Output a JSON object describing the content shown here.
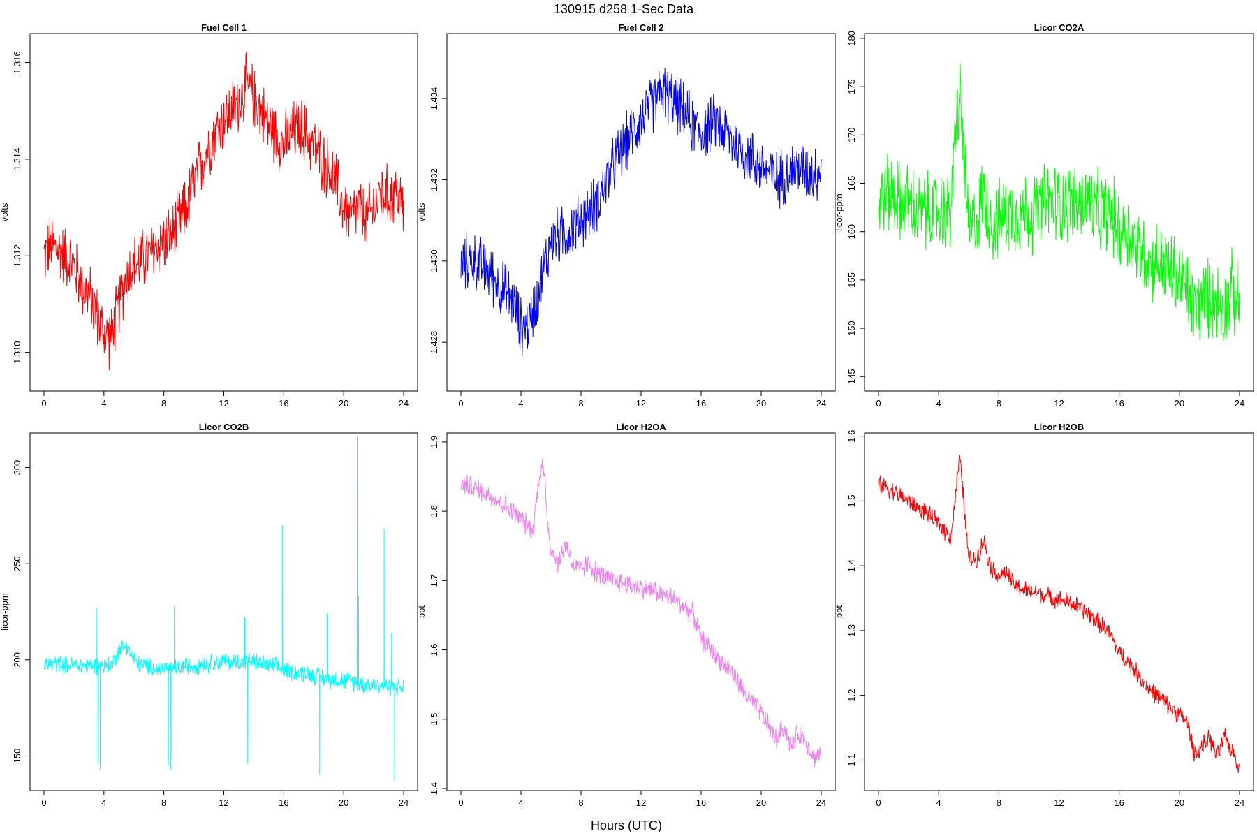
{
  "figure": {
    "title": "130915   d258   1-Sec Data",
    "xlabel": "Hours (UTC)"
  },
  "chart_data": [
    {
      "type": "line",
      "title": "Fuel Cell 1",
      "ylabel": "volts",
      "color": "#ff0000",
      "xlim": [
        0,
        24
      ],
      "ylim": [
        1.3092,
        1.3166
      ],
      "xticks": [
        0,
        4,
        8,
        12,
        16,
        20,
        24
      ],
      "yticks": [
        1.31,
        1.312,
        1.314,
        1.316
      ],
      "ytick_labels": [
        "1.310",
        "1.312",
        "1.314",
        "1.316"
      ],
      "noise": 0.00055,
      "x": [
        0,
        0.5,
        1,
        1.5,
        2,
        2.5,
        3,
        3.5,
        4,
        4.5,
        5,
        5.5,
        6,
        6.5,
        7,
        7.5,
        8,
        8.5,
        9,
        9.5,
        10,
        10.5,
        11,
        11.5,
        12,
        12.5,
        13,
        13.5,
        14,
        14.5,
        15,
        15.5,
        16,
        16.5,
        17,
        17.5,
        18,
        18.5,
        19,
        19.5,
        20,
        20.5,
        21,
        21.5,
        22,
        22.5,
        23,
        23.5,
        24
      ],
      "y": [
        1.312,
        1.3122,
        1.3121,
        1.312,
        1.3118,
        1.3114,
        1.3112,
        1.3108,
        1.3104,
        1.3103,
        1.311,
        1.3116,
        1.3118,
        1.3119,
        1.312,
        1.3122,
        1.3123,
        1.3124,
        1.3127,
        1.313,
        1.3135,
        1.3139,
        1.3143,
        1.3146,
        1.3148,
        1.315,
        1.3152,
        1.3155,
        1.3153,
        1.315,
        1.3147,
        1.3145,
        1.3143,
        1.3145,
        1.3147,
        1.3145,
        1.3143,
        1.314,
        1.3138,
        1.3135,
        1.313,
        1.3128,
        1.313,
        1.3127,
        1.313,
        1.3133,
        1.3132,
        1.3133,
        1.313
      ]
    },
    {
      "type": "line",
      "title": "Fuel Cell 2",
      "ylabel": "volts",
      "color": "#0000ff",
      "xlim": [
        0,
        24
      ],
      "ylim": [
        1.4268,
        1.4356
      ],
      "xticks": [
        0,
        4,
        8,
        12,
        16,
        20,
        24
      ],
      "yticks": [
        1.428,
        1.43,
        1.432,
        1.434
      ],
      "ytick_labels": [
        "1.428",
        "1.430",
        "1.432",
        "1.434"
      ],
      "noise": 0.0006,
      "x": [
        0,
        0.5,
        1,
        1.5,
        2,
        2.5,
        3,
        3.5,
        4,
        4.5,
        5,
        5.5,
        6,
        6.5,
        7,
        7.5,
        8,
        8.5,
        9,
        9.5,
        10,
        10.5,
        11,
        11.5,
        12,
        12.5,
        13,
        13.5,
        14,
        14.5,
        15,
        15.5,
        16,
        16.5,
        17,
        17.5,
        18,
        18.5,
        19,
        19.5,
        20,
        20.5,
        21,
        21.5,
        22,
        22.5,
        23,
        23.5,
        24
      ],
      "y": [
        1.4298,
        1.43,
        1.43,
        1.4298,
        1.4297,
        1.4294,
        1.4292,
        1.429,
        1.4284,
        1.4284,
        1.429,
        1.4298,
        1.4305,
        1.4306,
        1.4307,
        1.4308,
        1.431,
        1.4312,
        1.4314,
        1.4318,
        1.4322,
        1.4326,
        1.4329,
        1.4332,
        1.4335,
        1.4337,
        1.434,
        1.4342,
        1.434,
        1.4338,
        1.4336,
        1.4333,
        1.4332,
        1.4333,
        1.4334,
        1.4332,
        1.433,
        1.4328,
        1.4326,
        1.4325,
        1.4323,
        1.4322,
        1.432,
        1.4321,
        1.4322,
        1.4323,
        1.4322,
        1.4322,
        1.4322
      ]
    },
    {
      "type": "line",
      "title": "Licor CO2A",
      "ylabel": "licor-ppm",
      "color": "#00ff00",
      "xlim": [
        0,
        24
      ],
      "ylim": [
        143.5,
        180.5
      ],
      "xticks": [
        0,
        4,
        8,
        12,
        16,
        20,
        24
      ],
      "yticks": [
        145,
        150,
        155,
        160,
        165,
        170,
        175,
        180
      ],
      "ytick_labels": [
        "145",
        "150",
        "155",
        "160",
        "165",
        "170",
        "175",
        "180"
      ],
      "noise": 3.5,
      "x": [
        0,
        0.5,
        1,
        1.5,
        2,
        2.5,
        3,
        3.5,
        4,
        4.5,
        4.8,
        5.0,
        5.2,
        5.4,
        5.6,
        5.8,
        6.0,
        6.5,
        7,
        7.5,
        8,
        8.5,
        9,
        9.5,
        10,
        10.5,
        11,
        11.5,
        12,
        12.5,
        13,
        13.5,
        14,
        14.5,
        15,
        15.5,
        16,
        16.5,
        17,
        17.5,
        18,
        18.5,
        19,
        19.5,
        20,
        20.5,
        21,
        21.5,
        22,
        22.5,
        23,
        23.5,
        24
      ],
      "y": [
        163,
        164,
        164,
        163,
        163,
        162,
        162,
        162,
        162,
        162,
        162,
        167,
        172,
        174,
        170,
        165,
        160,
        161,
        164,
        161,
        161,
        162,
        162,
        162,
        162,
        162,
        163,
        163,
        163,
        163,
        163,
        163,
        163,
        162,
        162,
        162,
        160,
        160,
        159,
        158,
        157,
        157,
        156,
        156,
        155,
        154,
        152,
        153,
        153,
        153,
        152,
        154,
        152
      ]
    },
    {
      "type": "line",
      "title": "Licor CO2B",
      "ylabel": "licor-ppm",
      "color": "#00ffff",
      "xlim": [
        0,
        24
      ],
      "ylim": [
        132,
        318
      ],
      "xticks": [
        0,
        4,
        8,
        12,
        16,
        20,
        24
      ],
      "yticks": [
        150,
        200,
        250,
        300
      ],
      "ytick_labels": [
        "150",
        "200",
        "250",
        "300"
      ],
      "noise": 4,
      "x": [
        0,
        0.5,
        1,
        1.5,
        2,
        2.5,
        3,
        3.5,
        4,
        4.5,
        5,
        5.5,
        6,
        6.5,
        7,
        7.5,
        8,
        8.5,
        9,
        9.5,
        10,
        10.5,
        11,
        11.5,
        12,
        12.5,
        13,
        13.5,
        14,
        14.5,
        15,
        15.5,
        16,
        16.5,
        17,
        17.5,
        18,
        18.5,
        19,
        19.5,
        20,
        20.5,
        21,
        21.5,
        22,
        22.5,
        23,
        23.5,
        24
      ],
      "y": [
        197,
        198,
        198,
        197,
        197,
        197,
        197,
        197,
        197,
        197,
        205,
        208,
        200,
        197,
        197,
        195,
        196,
        195,
        196,
        197,
        197,
        198,
        198,
        199,
        199,
        199,
        199,
        199,
        199,
        198,
        197,
        196,
        195,
        194,
        193,
        193,
        192,
        191,
        190,
        190,
        189,
        189,
        188,
        187,
        187,
        187,
        186,
        186,
        185
      ],
      "spikes": [
        {
          "x": 3.5,
          "y": 227
        },
        {
          "x": 3.6,
          "y": 146
        },
        {
          "x": 3.75,
          "y": 143
        },
        {
          "x": 8.3,
          "y": 145
        },
        {
          "x": 8.45,
          "y": 143
        },
        {
          "x": 8.7,
          "y": 228
        },
        {
          "x": 13.4,
          "y": 222
        },
        {
          "x": 13.6,
          "y": 146
        },
        {
          "x": 15.9,
          "y": 270
        },
        {
          "x": 18.4,
          "y": 140
        },
        {
          "x": 18.9,
          "y": 224
        },
        {
          "x": 20.9,
          "y": 316
        },
        {
          "x": 21.0,
          "y": 233
        },
        {
          "x": 22.7,
          "y": 268
        },
        {
          "x": 23.2,
          "y": 214
        },
        {
          "x": 23.4,
          "y": 137
        }
      ]
    },
    {
      "type": "line",
      "title": "Licor H2OA",
      "ylabel": "ppt",
      "color": "#ee82ee",
      "xlim": [
        0,
        24
      ],
      "ylim": [
        1.397,
        1.913
      ],
      "xticks": [
        0,
        4,
        8,
        12,
        16,
        20,
        24
      ],
      "yticks": [
        1.4,
        1.5,
        1.6,
        1.7,
        1.8,
        1.9
      ],
      "ytick_labels": [
        "1.4",
        "1.5",
        "1.6",
        "1.7",
        "1.8",
        "1.9"
      ],
      "noise": 0.013,
      "x": [
        0,
        0.5,
        1,
        1.5,
        2,
        2.5,
        3,
        3.5,
        4,
        4.5,
        4.8,
        5.0,
        5.2,
        5.4,
        5.6,
        5.8,
        6.0,
        6.5,
        7,
        7.5,
        8,
        8.5,
        9,
        9.5,
        10,
        10.5,
        11,
        11.5,
        12,
        12.5,
        13,
        13.5,
        14,
        14.5,
        15,
        15.5,
        16,
        16.5,
        17,
        17.5,
        18,
        18.5,
        19,
        19.5,
        20,
        20.5,
        21,
        21.5,
        22,
        22.5,
        23,
        23.5,
        24
      ],
      "y": [
        1.84,
        1.837,
        1.833,
        1.828,
        1.822,
        1.815,
        1.808,
        1.798,
        1.788,
        1.778,
        1.772,
        1.81,
        1.85,
        1.87,
        1.84,
        1.78,
        1.745,
        1.725,
        1.755,
        1.72,
        1.715,
        1.725,
        1.712,
        1.705,
        1.7,
        1.698,
        1.695,
        1.693,
        1.69,
        1.688,
        1.685,
        1.68,
        1.675,
        1.668,
        1.66,
        1.65,
        1.615,
        1.605,
        1.59,
        1.58,
        1.57,
        1.55,
        1.535,
        1.52,
        1.51,
        1.49,
        1.47,
        1.49,
        1.46,
        1.48,
        1.47,
        1.445,
        1.45
      ]
    },
    {
      "type": "line",
      "title": "Licor H2OB",
      "ylabel": "ppt",
      "color": "#ff0000",
      "xlim": [
        0,
        24
      ],
      "ylim": [
        1.053,
        1.605
      ],
      "xticks": [
        0,
        4,
        8,
        12,
        16,
        20,
        24
      ],
      "yticks": [
        1.1,
        1.2,
        1.3,
        1.4,
        1.5,
        1.6
      ],
      "ytick_labels": [
        "1.1",
        "1.2",
        "1.3",
        "1.4",
        "1.5",
        "1.6"
      ],
      "noise": 0.012,
      "x": [
        0,
        0.5,
        1,
        1.5,
        2,
        2.5,
        3,
        3.5,
        4,
        4.5,
        4.8,
        5.0,
        5.2,
        5.4,
        5.6,
        5.8,
        6.0,
        6.5,
        7,
        7.5,
        8,
        8.5,
        9,
        9.5,
        10,
        10.5,
        11,
        11.5,
        12,
        12.5,
        13,
        13.5,
        14,
        14.5,
        15,
        15.5,
        16,
        16.5,
        17,
        17.5,
        18,
        18.5,
        19,
        19.5,
        20,
        20.5,
        21,
        21.5,
        22,
        22.5,
        23,
        23.5,
        24
      ],
      "y": [
        1.525,
        1.522,
        1.515,
        1.508,
        1.5,
        1.492,
        1.485,
        1.475,
        1.465,
        1.452,
        1.445,
        1.48,
        1.53,
        1.565,
        1.52,
        1.46,
        1.41,
        1.41,
        1.44,
        1.395,
        1.385,
        1.39,
        1.37,
        1.365,
        1.36,
        1.358,
        1.355,
        1.352,
        1.348,
        1.345,
        1.34,
        1.333,
        1.325,
        1.315,
        1.305,
        1.29,
        1.265,
        1.255,
        1.24,
        1.225,
        1.21,
        1.2,
        1.19,
        1.18,
        1.17,
        1.16,
        1.11,
        1.12,
        1.135,
        1.105,
        1.135,
        1.115,
        1.09
      ]
    }
  ]
}
